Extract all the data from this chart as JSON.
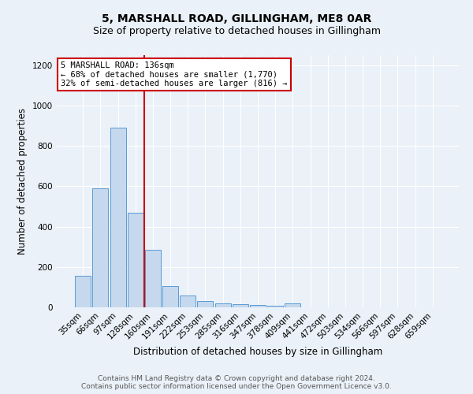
{
  "title": "5, MARSHALL ROAD, GILLINGHAM, ME8 0AR",
  "subtitle": "Size of property relative to detached houses in Gillingham",
  "xlabel": "Distribution of detached houses by size in Gillingham",
  "ylabel": "Number of detached properties",
  "categories": [
    "35sqm",
    "66sqm",
    "97sqm",
    "128sqm",
    "160sqm",
    "191sqm",
    "222sqm",
    "253sqm",
    "285sqm",
    "316sqm",
    "347sqm",
    "378sqm",
    "409sqm",
    "441sqm",
    "472sqm",
    "503sqm",
    "534sqm",
    "566sqm",
    "597sqm",
    "628sqm",
    "659sqm"
  ],
  "values": [
    155,
    590,
    890,
    470,
    285,
    105,
    60,
    30,
    18,
    14,
    12,
    8,
    18,
    0,
    0,
    0,
    0,
    0,
    0,
    0,
    0
  ],
  "bar_color": "#c5d8ed",
  "bar_edge_color": "#5b9bd5",
  "red_line_x": 3.5,
  "annotation_lines": [
    "5 MARSHALL ROAD: 136sqm",
    "← 68% of detached houses are smaller (1,770)",
    "32% of semi-detached houses are larger (816) →"
  ],
  "annotation_box_color": "#ffffff",
  "annotation_box_edge": "#cc0000",
  "red_line_color": "#cc0000",
  "ylim": [
    0,
    1250
  ],
  "yticks": [
    0,
    200,
    400,
    600,
    800,
    1000,
    1200
  ],
  "footer_line1": "Contains HM Land Registry data © Crown copyright and database right 2024.",
  "footer_line2": "Contains public sector information licensed under the Open Government Licence v3.0.",
  "background_color": "#eaf1f8",
  "plot_bg_color": "#eaf1f8",
  "title_fontsize": 10,
  "subtitle_fontsize": 9,
  "axis_label_fontsize": 8.5,
  "tick_fontsize": 7.5,
  "annotation_fontsize": 7.5,
  "footer_fontsize": 6.5
}
